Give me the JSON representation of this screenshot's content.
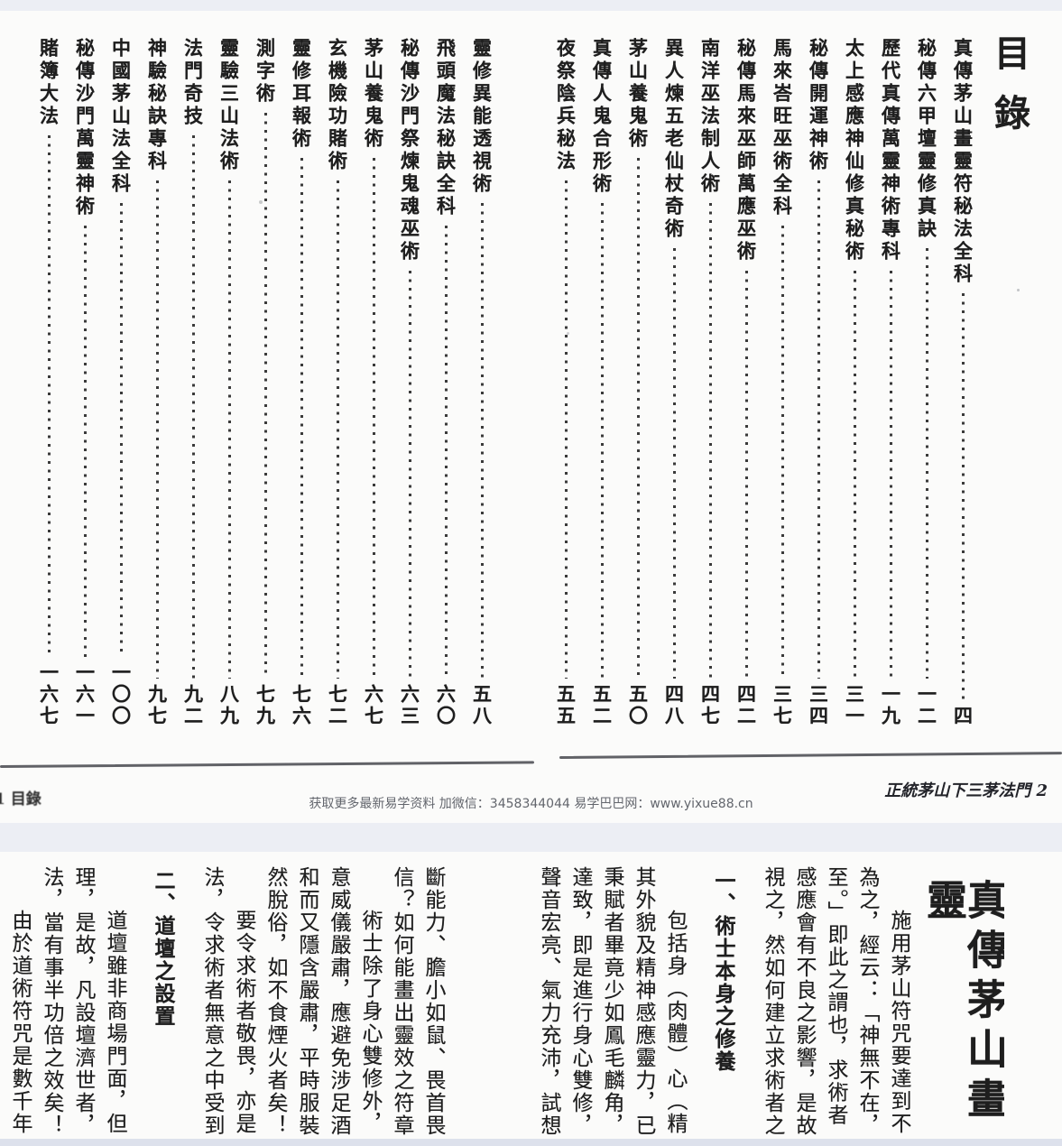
{
  "page1": {
    "title": "目錄",
    "toc_right": [
      {
        "t": "真傳茅山畫靈符秘法全科",
        "p": "四"
      },
      {
        "t": "秘傳六甲壇靈修真訣",
        "p": "一二"
      },
      {
        "t": "歷代真傳萬靈神術專科",
        "p": "一九"
      },
      {
        "t": "太上感應神仙修真秘術",
        "p": "三一"
      },
      {
        "t": "秘傳開運神術",
        "p": "三四"
      },
      {
        "t": "馬來峇旺巫術全科",
        "p": "三七"
      },
      {
        "t": "秘傳馬來巫師萬應巫術",
        "p": "四二"
      },
      {
        "t": "南洋巫法制人術",
        "p": "四七"
      },
      {
        "t": "異人煉五老仙杖奇術",
        "p": "四八"
      },
      {
        "t": "茅山養鬼術",
        "p": "五〇"
      },
      {
        "t": "真傳人鬼合形術",
        "p": "五二"
      },
      {
        "t": "夜祭陰兵秘法",
        "p": "五五"
      }
    ],
    "toc_left": [
      {
        "t": "靈修異能透視術",
        "p": "五八"
      },
      {
        "t": "飛頭魔法秘訣全科",
        "p": "六〇"
      },
      {
        "t": "秘傳沙門祭煉鬼魂巫術",
        "p": "六三"
      },
      {
        "t": "茅山養鬼術",
        "p": "六七"
      },
      {
        "t": "玄機險功賭術",
        "p": "七二"
      },
      {
        "t": "靈修耳報術",
        "p": "七六"
      },
      {
        "t": "測字術",
        "p": "七九"
      },
      {
        "t": "靈驗三山法術",
        "p": "八九"
      },
      {
        "t": "法門奇技",
        "p": "九二"
      },
      {
        "t": "神驗秘訣專科",
        "p": "九七"
      },
      {
        "t": "中國茅山法全科",
        "p": "一〇〇"
      },
      {
        "t": "秘傳沙門萬靈神術",
        "p": "一六一"
      },
      {
        "t": "賭簿大法",
        "p": "一六七"
      }
    ],
    "footer_left": "1 目錄",
    "footer_center": "获取更多最新易学资料 加微信：3458344044 易学巴巴网：www.yixue88.cn",
    "footer_right": "正統茅山下三茅法門 2"
  },
  "page2": {
    "title": "真傳茅山畫靈",
    "columns_right": [
      {
        "text": "施用茅山符咒要達到不",
        "indent": true
      },
      {
        "text": "為之，經云：「神無不在，"
      },
      {
        "text": "至。」即此之謂也，求術者"
      },
      {
        "text": "感應會有不良之影響，是故"
      },
      {
        "text": "視之，然如何建立求術者之"
      },
      {
        "text": "一、術士本身之修養",
        "heading": true
      },
      {
        "text": "包括身（肉體）心（精神",
        "indent": true
      },
      {
        "text": "其外貌及精神感應靈力，已"
      },
      {
        "text": "秉賦者畢竟少如鳳毛麟角，"
      },
      {
        "text": "達致，即是進行身心雙修，"
      },
      {
        "text": "聲音宏亮、氣力充沛，試想"
      }
    ],
    "columns_left": [
      {
        "text": "斷能力、膽小如鼠、畏首畏"
      },
      {
        "text": "信？如何能畫出靈效之符章"
      },
      {
        "text": "術士除了身心雙修外，",
        "indent": true
      },
      {
        "text": "意威儀嚴肅，應避免涉足酒"
      },
      {
        "text": "和而又隱含嚴肅，平時服裝"
      },
      {
        "text": "然脫俗，如不食煙火者矣！"
      },
      {
        "text": "要令求術者敬畏，亦是",
        "indent": true
      },
      {
        "text": "法，令求術者無意之中受到"
      },
      {
        "text": "二、道壇之設置",
        "heading": true
      },
      {
        "text": "道壇雖非商場門面，但",
        "indent": true
      },
      {
        "text": "理，是故，凡設壇濟世者，"
      },
      {
        "text": "法，當有事半功倍之效矣！"
      },
      {
        "text": "由於道術符咒是數千年",
        "indent": true
      }
    ]
  },
  "colors": {
    "background": "#eceef4",
    "paper": "#fbfbfa",
    "ink": "#1e1e1e",
    "watermark_gray": "#63666d"
  }
}
